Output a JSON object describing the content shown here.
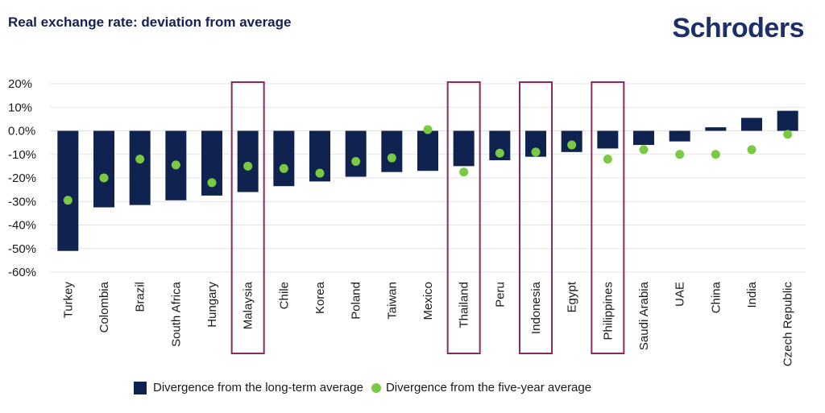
{
  "header": {
    "title": "Real exchange rate: deviation from average",
    "brand": "Schroders"
  },
  "colors": {
    "bar": "#0f2250",
    "dot": "#7ac943",
    "highlight": "#8b2a5f",
    "grid": "#e3e3e3",
    "text": "#1a1a1a"
  },
  "chart_data": {
    "type": "bar",
    "title": "Real exchange rate: deviation from average",
    "xlabel": "",
    "ylabel": "",
    "ylim": [
      -60,
      20
    ],
    "yticks": [
      {
        "value": 20,
        "label": "20%"
      },
      {
        "value": 10,
        "label": "10%"
      },
      {
        "value": 0,
        "label": "0.0%"
      },
      {
        "value": -10,
        "label": "-10%"
      },
      {
        "value": -20,
        "label": "-20%"
      },
      {
        "value": -30,
        "label": "-30%"
      },
      {
        "value": -40,
        "label": "-40%"
      },
      {
        "value": -50,
        "label": "-50%"
      },
      {
        "value": -60,
        "label": "-60%"
      }
    ],
    "grid": true,
    "categories": [
      "Turkey",
      "Colombia",
      "Brazil",
      "South Africa",
      "Hungary",
      "Malaysia",
      "Chile",
      "Korea",
      "Poland",
      "Taiwan",
      "Mexico",
      "Thailand",
      "Peru",
      "Indonesia",
      "Egypt",
      "Philippines",
      "Saudi Arabia",
      "UAE",
      "China",
      "India",
      "Czech Republic"
    ],
    "series": [
      {
        "name": "Divergence from the long-term average",
        "kind": "bar",
        "values": [
          -51,
          -32.5,
          -31.5,
          -29.5,
          -27.5,
          -26,
          -23.5,
          -21.5,
          -19.5,
          -17.5,
          -17,
          -15,
          -12.5,
          -11,
          -9,
          -7.5,
          -6,
          -4.5,
          1.5,
          5.5,
          8.5
        ]
      },
      {
        "name": "Divergence from the five-year average",
        "kind": "dot",
        "values": [
          -29.5,
          -20,
          -12,
          -14.5,
          -22,
          -15,
          -16,
          -18,
          -13,
          -11.5,
          0.5,
          -17.5,
          -9.5,
          -9,
          -6,
          -12,
          -8,
          -10,
          -10,
          -8,
          -1.5
        ]
      }
    ],
    "highlighted": [
      "Malaysia",
      "Thailand",
      "Indonesia",
      "Philippines"
    ],
    "legend_position": "bottom"
  },
  "legend": {
    "bar_label": "Divergence from the long-term average",
    "dot_label": "Divergence from the five-year average"
  }
}
